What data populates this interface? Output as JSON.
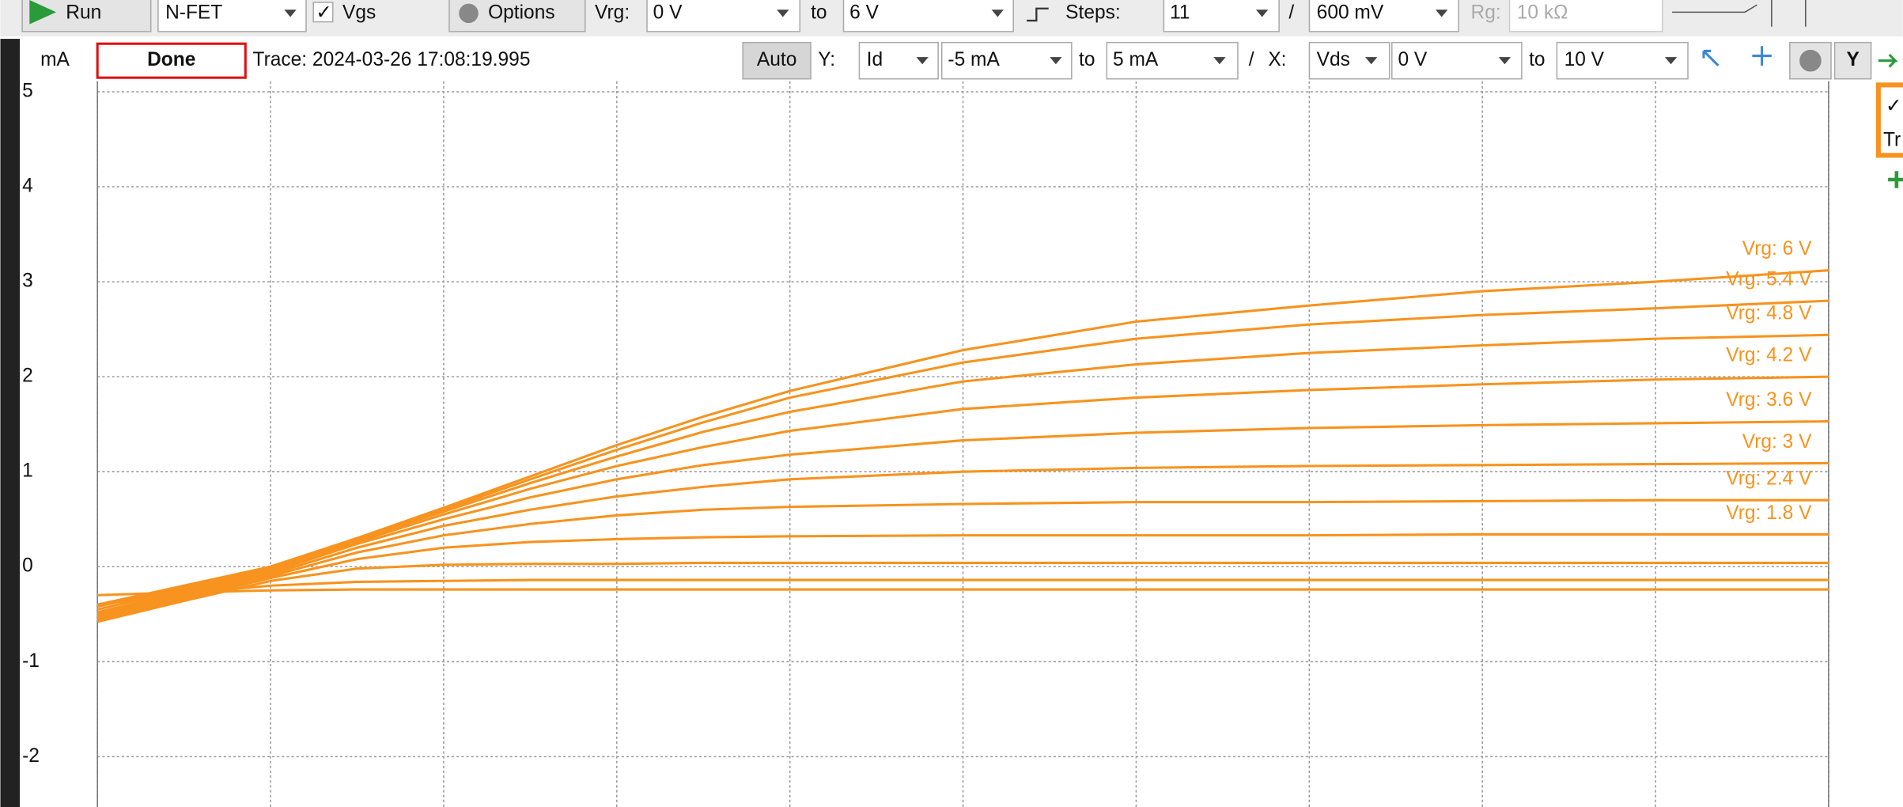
{
  "toolbar": {
    "run": "Run",
    "device": "N-FET",
    "vgs": "Vgs",
    "options": "Options",
    "vrg_label": "Vrg:",
    "vrg_from": "0 V",
    "to_a": "to",
    "vrg_to": "6 V",
    "steps_label": "Steps:",
    "steps": "11",
    "slash": "/",
    "step_size": "600 mV",
    "rg_label": "Rg:",
    "rg_value": "10 kΩ"
  },
  "status": {
    "unit": "mA",
    "state": "Done",
    "trace": "Trace: 2024-03-26 17:08:19.995",
    "auto": "Auto",
    "y_label": "Y:",
    "y_signal": "Id",
    "y_from": "-5 mA",
    "to_b": "to",
    "y_to": "5 mA",
    "slash": "/",
    "x_label": "X:",
    "x_signal": "Vds",
    "x_from": "0 V",
    "to_c": "to",
    "x_to": "10 V",
    "y_button": "Y"
  },
  "side": {
    "trace_short": "Tr"
  },
  "chart_data": {
    "type": "line",
    "color": "#f7931e",
    "x": [
      0,
      0.5,
      1,
      1.5,
      2,
      2.5,
      3,
      3.5,
      4,
      5,
      6,
      7,
      8,
      9,
      10
    ],
    "xlim": [
      0,
      10
    ],
    "xticks": [
      0,
      1,
      2,
      3,
      4,
      5,
      6,
      7,
      8,
      9,
      10
    ],
    "ylim": [
      -2.53,
      5.11
    ],
    "yticks": [
      5,
      4,
      3,
      2,
      1,
      0,
      -1,
      -2
    ],
    "grid": true,
    "series": [
      {
        "name": "Vrg: 6 V",
        "values": [
          -0.4,
          -0.2,
          0.0,
          0.3,
          0.62,
          0.95,
          1.28,
          1.58,
          1.85,
          2.28,
          2.58,
          2.75,
          2.9,
          3.0,
          3.12
        ]
      },
      {
        "name": "Vrg: 5.4 V",
        "values": [
          -0.42,
          -0.22,
          0.0,
          0.3,
          0.6,
          0.92,
          1.23,
          1.52,
          1.78,
          2.15,
          2.4,
          2.55,
          2.65,
          2.72,
          2.8
        ]
      },
      {
        "name": "Vrg: 4.8 V",
        "values": [
          -0.45,
          -0.24,
          -0.02,
          0.28,
          0.58,
          0.88,
          1.16,
          1.42,
          1.63,
          1.95,
          2.13,
          2.25,
          2.33,
          2.4,
          2.44
        ]
      },
      {
        "name": "Vrg: 4.2 V",
        "values": [
          -0.48,
          -0.26,
          -0.04,
          0.26,
          0.55,
          0.82,
          1.06,
          1.26,
          1.43,
          1.66,
          1.78,
          1.86,
          1.92,
          1.97,
          2.0
        ]
      },
      {
        "name": "Vrg: 3.6 V",
        "values": [
          -0.5,
          -0.28,
          -0.06,
          0.24,
          0.5,
          0.73,
          0.92,
          1.07,
          1.18,
          1.33,
          1.41,
          1.46,
          1.49,
          1.51,
          1.53
        ]
      },
      {
        "name": "Vrg: 3 V",
        "values": [
          -0.52,
          -0.3,
          -0.08,
          0.2,
          0.43,
          0.6,
          0.74,
          0.84,
          0.92,
          1.0,
          1.04,
          1.06,
          1.07,
          1.08,
          1.09
        ]
      },
      {
        "name": "Vrg: 2.4 V",
        "values": [
          -0.54,
          -0.32,
          -0.1,
          0.15,
          0.33,
          0.45,
          0.54,
          0.6,
          0.63,
          0.66,
          0.68,
          0.68,
          0.69,
          0.7,
          0.7
        ]
      },
      {
        "name": "Vrg: 1.8 V",
        "values": [
          -0.56,
          -0.34,
          -0.12,
          0.08,
          0.2,
          0.26,
          0.29,
          0.31,
          0.32,
          0.33,
          0.33,
          0.33,
          0.34,
          0.34,
          0.34
        ]
      },
      {
        "values": [
          -0.58,
          -0.36,
          -0.15,
          -0.02,
          0.02,
          0.03,
          0.03,
          0.04,
          0.04,
          0.04,
          0.04,
          0.04,
          0.04,
          0.04,
          0.04
        ]
      },
      {
        "values": [
          -0.4,
          -0.28,
          -0.2,
          -0.16,
          -0.15,
          -0.14,
          -0.14,
          -0.14,
          -0.14,
          -0.14,
          -0.14,
          -0.14,
          -0.14,
          -0.14,
          -0.14
        ]
      },
      {
        "values": [
          -0.3,
          -0.27,
          -0.25,
          -0.24,
          -0.24,
          -0.24,
          -0.24,
          -0.24,
          -0.24,
          -0.24,
          -0.24,
          -0.24,
          -0.24,
          -0.24,
          -0.24
        ]
      }
    ]
  }
}
